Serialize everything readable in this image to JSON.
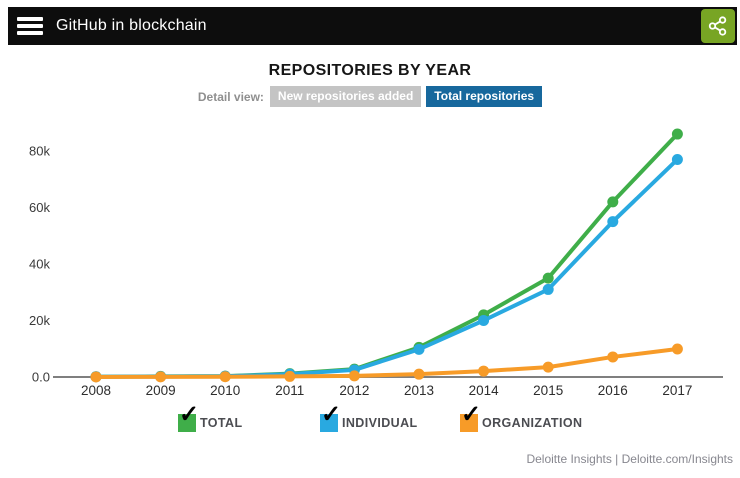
{
  "header": {
    "title": "GitHub in blockchain",
    "bar_color": "#0d0d0d",
    "share_button_color": "#78a524"
  },
  "detail_view": {
    "label": "Detail view:",
    "buttons": [
      {
        "label": "New repositories added",
        "active": false,
        "color": "#c4c4c4"
      },
      {
        "label": "Total repositories",
        "active": true,
        "color": "#17689d"
      }
    ]
  },
  "chart_data": {
    "type": "line",
    "title": "REPOSITORIES BY YEAR",
    "value_unit": "thousands of repositories",
    "categories": [
      "2008",
      "2009",
      "2010",
      "2011",
      "2012",
      "2013",
      "2014",
      "2015",
      "2016",
      "2017"
    ],
    "series": [
      {
        "name": "TOTAL",
        "color": "#3fae49",
        "values": [
          0.1,
          0.2,
          0.3,
          1.2,
          2.8,
          10.5,
          22,
          35,
          62,
          86
        ]
      },
      {
        "name": "INDIVIDUAL",
        "color": "#29a9e0",
        "values": [
          0.08,
          0.15,
          0.25,
          1.0,
          2.5,
          9.8,
          20,
          31,
          55,
          77
        ]
      },
      {
        "name": "ORGANIZATION",
        "color": "#f79b28",
        "values": [
          0.02,
          0.05,
          0.1,
          0.2,
          0.4,
          1.0,
          2.1,
          3.5,
          7.1,
          9.9
        ]
      }
    ],
    "ytick_labels": [
      "0.0",
      "20k",
      "40k",
      "60k",
      "80k"
    ],
    "ytick_values": [
      0,
      20,
      40,
      60,
      80
    ],
    "ylim": [
      0,
      91
    ],
    "xlabel": "",
    "ylabel": "",
    "grid": false,
    "legend_position": "bottom"
  },
  "legend": {
    "items": [
      {
        "label": "TOTAL",
        "color": "#3fae49",
        "checked": true
      },
      {
        "label": "INDIVIDUAL",
        "color": "#29a9e0",
        "checked": true
      },
      {
        "label": "ORGANIZATION",
        "color": "#f79b28",
        "checked": true
      }
    ]
  },
  "footer": {
    "credit": "Deloitte Insights | Deloitte.com/Insights"
  }
}
